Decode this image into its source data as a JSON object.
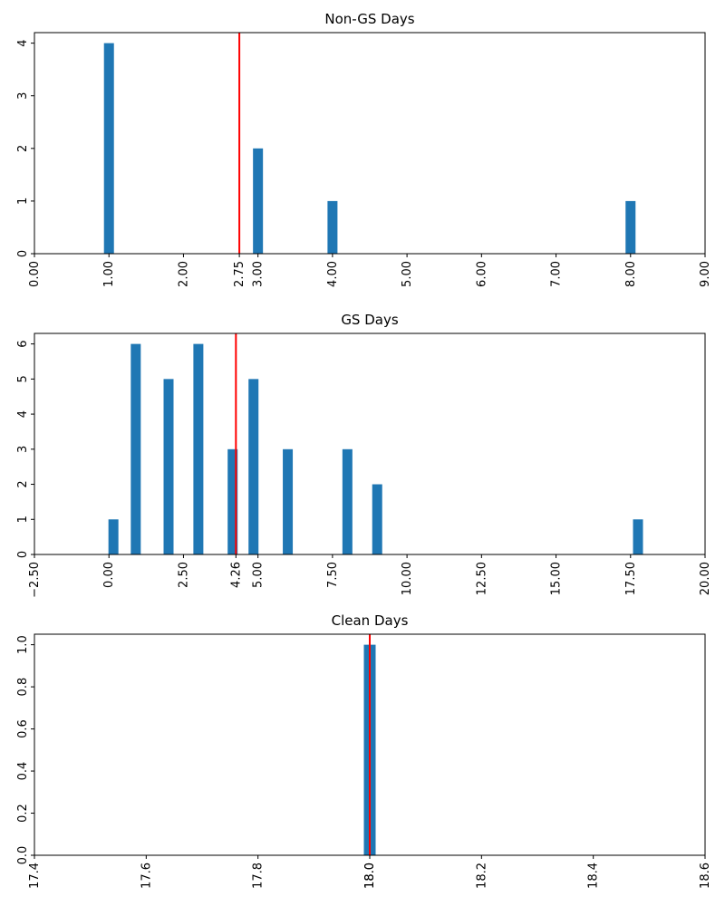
{
  "chart_data": [
    {
      "type": "bar",
      "title": "Non-GS Days",
      "x": [
        1,
        3,
        4,
        8
      ],
      "values": [
        4,
        2,
        1,
        1
      ],
      "xlim": [
        0,
        9
      ],
      "ylim": [
        0,
        4.2
      ],
      "xticks": [
        "0.00",
        "1.00",
        "2.00",
        "2.75",
        "3.00",
        "4.00",
        "5.00",
        "6.00",
        "7.00",
        "8.00",
        "9.00"
      ],
      "yticks": [
        "0",
        "1",
        "2",
        "3",
        "4"
      ],
      "vline": 2.75,
      "bar_color": "#1f77b4",
      "vline_color": "#ff0000"
    },
    {
      "type": "bar",
      "title": "GS Days",
      "x": [
        0.15,
        0.9,
        2,
        3,
        4.15,
        4.85,
        6,
        8,
        9,
        17.75
      ],
      "values": [
        1,
        6,
        5,
        6,
        3,
        5,
        3,
        3,
        2,
        1
      ],
      "xlim": [
        -2.5,
        20
      ],
      "ylim": [
        0,
        6.3
      ],
      "xticks": [
        "-2.50",
        "0.00",
        "2.50",
        "4.26",
        "5.00",
        "7.50",
        "10.00",
        "12.50",
        "15.00",
        "17.50",
        "20.00"
      ],
      "yticks": [
        "0",
        "1",
        "2",
        "3",
        "4",
        "5",
        "6"
      ],
      "vline": 4.26,
      "bar_color": "#1f77b4",
      "vline_color": "#ff0000"
    },
    {
      "type": "bar",
      "title": "Clean Days",
      "x": [
        18.0
      ],
      "values": [
        1
      ],
      "xlim": [
        17.4,
        18.6
      ],
      "ylim": [
        0,
        1.05
      ],
      "xticks": [
        "17.4",
        "17.6",
        "17.8",
        "18.0",
        "18.0",
        "18.2",
        "18.4",
        "18.6"
      ],
      "yticks": [
        "0.0",
        "0.2",
        "0.4",
        "0.6",
        "0.8",
        "1.0"
      ],
      "vline": 18.0,
      "bar_color": "#1f77b4",
      "vline_color": "#ff0000"
    }
  ]
}
